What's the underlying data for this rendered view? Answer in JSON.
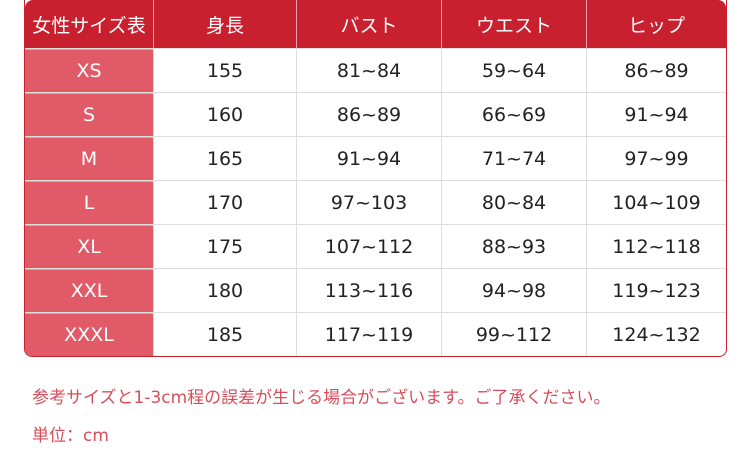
{
  "table": {
    "headers": [
      "女性サイズ表",
      "身長",
      "バスト",
      "ウエスト",
      "ヒップ"
    ],
    "rows": [
      [
        "XS",
        "155",
        "81~84",
        "59~64",
        "86~89"
      ],
      [
        "S",
        "160",
        "86~89",
        "66~69",
        "91~94"
      ],
      [
        "M",
        "165",
        "91~94",
        "71~74",
        "97~99"
      ],
      [
        "L",
        "170",
        "97~103",
        "80~84",
        "104~109"
      ],
      [
        "XL",
        "175",
        "107~112",
        "88~93",
        "112~118"
      ],
      [
        "XXL",
        "180",
        "113~116",
        "94~98",
        "119~123"
      ],
      [
        "XXXL",
        "185",
        "117~119",
        "99~112",
        "124~132"
      ]
    ]
  },
  "notes": {
    "disclaimer": "参考サイズと1-3cm程の誤差が生じる場合がございます。ご了承ください。",
    "unit": "単位：cm"
  },
  "colors": {
    "header": "#c9202f",
    "size_column": "#e05a68",
    "note_text": "#d84d5a"
  }
}
